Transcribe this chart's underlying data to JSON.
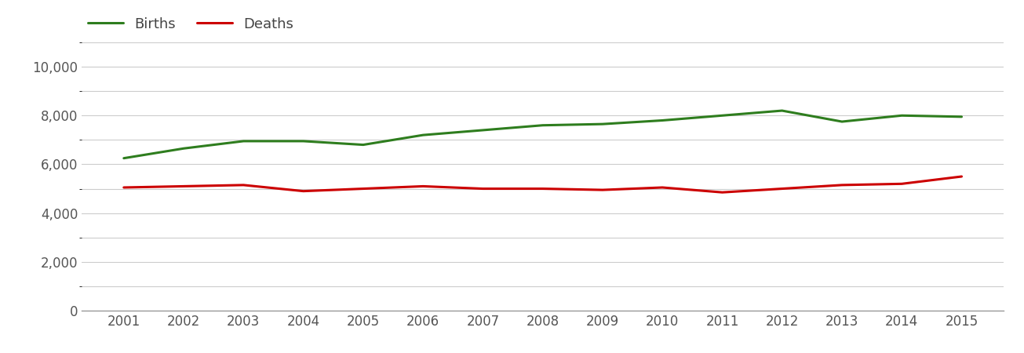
{
  "years": [
    2001,
    2002,
    2003,
    2004,
    2005,
    2006,
    2007,
    2008,
    2009,
    2010,
    2011,
    2012,
    2013,
    2014,
    2015
  ],
  "births": [
    6250,
    6650,
    6950,
    6950,
    6800,
    7200,
    7400,
    7600,
    7650,
    7800,
    8000,
    8200,
    7750,
    8000,
    7950
  ],
  "deaths": [
    5050,
    5100,
    5150,
    4900,
    5000,
    5100,
    5000,
    5000,
    4950,
    5050,
    4850,
    5000,
    5150,
    5200,
    5500
  ],
  "births_color": "#2e7d1e",
  "deaths_color": "#cc0000",
  "line_width": 2.2,
  "ylim": [
    0,
    11000
  ],
  "yticks": [
    0,
    2000,
    4000,
    6000,
    8000,
    10000
  ],
  "background_color": "#ffffff",
  "grid_color": "#cccccc",
  "legend_labels": [
    "Births",
    "Deaths"
  ],
  "legend_fontsize": 13,
  "tick_fontsize": 12,
  "spine_color": "#999999",
  "tick_color": "#555555"
}
